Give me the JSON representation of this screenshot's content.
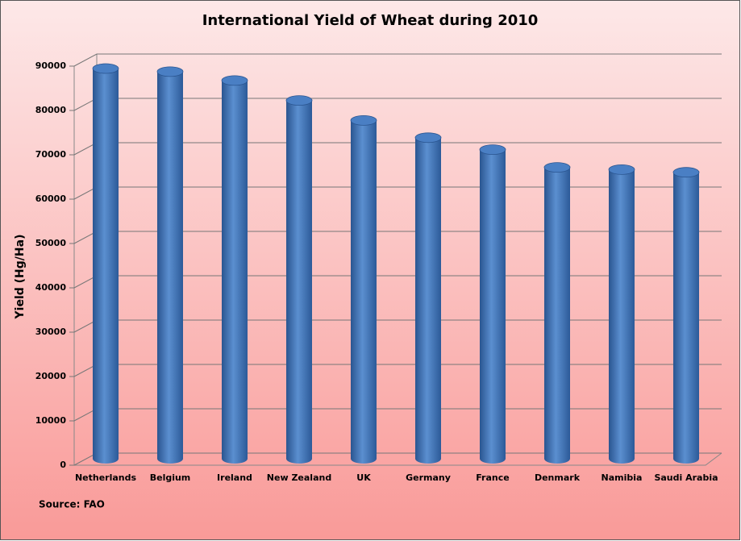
{
  "chart_data": {
    "type": "bar",
    "title": "International Yield of Wheat during 2010",
    "y_label": "Yield (Hg/Ha)",
    "source": "Source: FAO",
    "categories": [
      "Netherlands",
      "Belgium",
      "Ireland",
      "New Zealand",
      "UK",
      "Germany",
      "France",
      "Denmark",
      "Namibia",
      "Saudi Arabia"
    ],
    "values": [
      88000,
      87300,
      85300,
      80800,
      76300,
      72400,
      69700,
      65700,
      65200,
      64600
    ],
    "color": "#4f81bd",
    "ylim": [
      0,
      90000
    ],
    "yticks": [
      0,
      10000,
      20000,
      30000,
      40000,
      50000,
      60000,
      70000,
      80000,
      90000
    ],
    "grid": true
  }
}
